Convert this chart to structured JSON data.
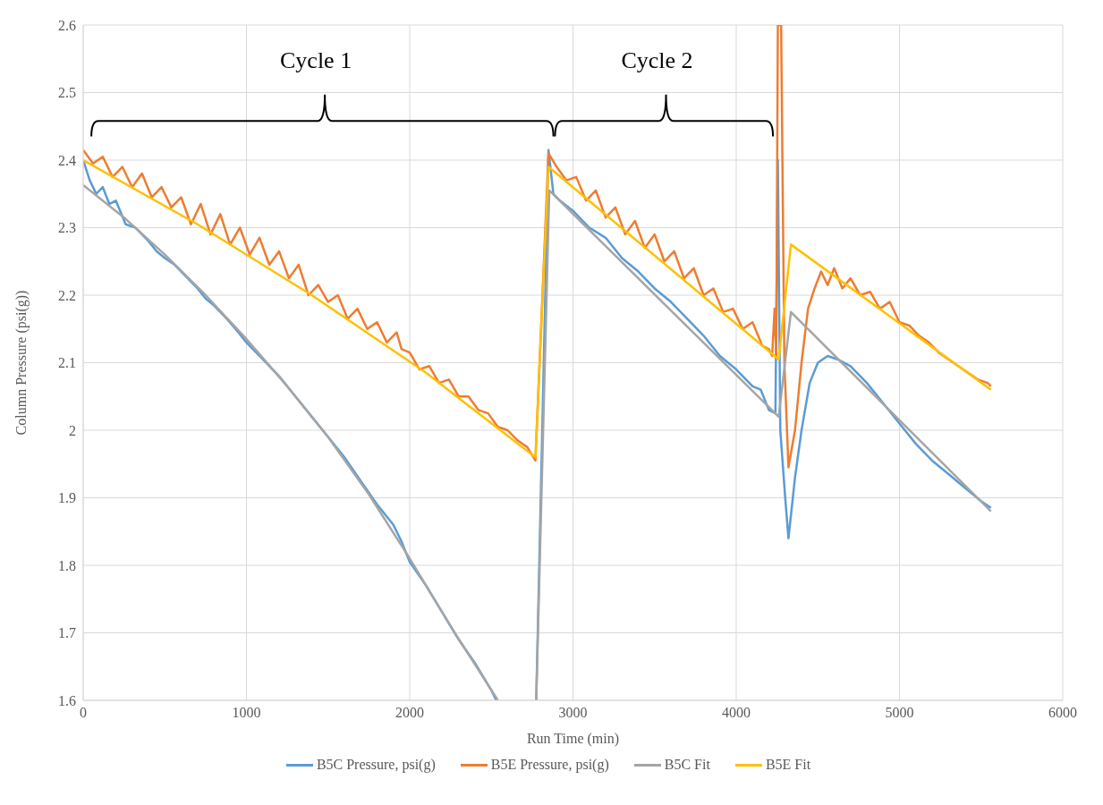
{
  "chart_data": {
    "type": "line",
    "xlabel": "Run Time (min)",
    "ylabel": "Column Pressure (psi(g))",
    "xlim": [
      0,
      6000
    ],
    "xticks": [
      0,
      1000,
      2000,
      3000,
      4000,
      5000,
      6000
    ],
    "ylim": [
      1.6,
      2.6
    ],
    "yticks": [
      1.6,
      1.7,
      1.8,
      1.9,
      2,
      2.1,
      2.2,
      2.3,
      2.4,
      2.5,
      2.6
    ],
    "grid": true,
    "legend": "bottom",
    "marker": "none",
    "line_style": "solid",
    "annotations": [
      "Cycle 1",
      "Cycle 2"
    ],
    "series": [
      {
        "name": "B5C Pressure, psi(g)",
        "color": "#5b9bd5",
        "x": [
          0,
          40,
          80,
          120,
          160,
          200,
          260,
          320,
          400,
          450,
          500,
          560,
          620,
          700,
          750,
          800,
          880,
          950,
          1000,
          1100,
          1200,
          1300,
          1400,
          1500,
          1600,
          1700,
          1800,
          1900,
          1950,
          2000,
          2100,
          2200,
          2300,
          2400,
          2500,
          2530,
          2650,
          2775,
          2850,
          2880,
          2920,
          3000,
          3100,
          3200,
          3300,
          3400,
          3500,
          3600,
          3700,
          3800,
          3900,
          4000,
          4100,
          4150,
          4200,
          4240,
          4255,
          4270,
          4300,
          4320,
          4360,
          4400,
          4450,
          4500,
          4560,
          4620,
          4700,
          4800,
          4900,
          5000,
          5100,
          5200,
          5300,
          5400,
          5500,
          5560
        ],
        "values": [
          2.4,
          2.37,
          2.35,
          2.36,
          2.335,
          2.34,
          2.305,
          2.3,
          2.28,
          2.265,
          2.255,
          2.245,
          2.23,
          2.21,
          2.195,
          2.185,
          2.165,
          2.145,
          2.13,
          2.105,
          2.08,
          2.05,
          2.02,
          1.99,
          1.96,
          1.925,
          1.89,
          1.86,
          1.835,
          1.805,
          1.77,
          1.73,
          1.69,
          1.655,
          1.615,
          1.6,
          null,
          1.6,
          2.415,
          2.35,
          2.34,
          2.325,
          2.3,
          2.285,
          2.255,
          2.235,
          2.21,
          2.19,
          2.165,
          2.14,
          2.11,
          2.09,
          2.065,
          2.06,
          2.03,
          2.025,
          2.4,
          2.0,
          1.9,
          1.84,
          1.93,
          2.0,
          2.07,
          2.1,
          2.11,
          2.105,
          2.095,
          2.07,
          2.04,
          2.01,
          1.98,
          1.955,
          1.935,
          1.915,
          1.895,
          1.885
        ]
      },
      {
        "name": "B5E Pressure, psi(g)",
        "color": "#ed7d31",
        "x": [
          0,
          60,
          120,
          180,
          240,
          300,
          360,
          420,
          480,
          540,
          600,
          660,
          720,
          780,
          840,
          900,
          960,
          1020,
          1080,
          1140,
          1200,
          1260,
          1320,
          1380,
          1440,
          1500,
          1560,
          1620,
          1680,
          1740,
          1800,
          1860,
          1920,
          1950,
          2000,
          2060,
          2120,
          2180,
          2240,
          2300,
          2360,
          2420,
          2480,
          2540,
          2600,
          2660,
          2720,
          2770,
          2850,
          2900,
          2960,
          3020,
          3080,
          3140,
          3200,
          3260,
          3320,
          3380,
          3440,
          3500,
          3560,
          3620,
          3680,
          3740,
          3800,
          3860,
          3920,
          3980,
          4040,
          4100,
          4160,
          4200,
          4220,
          4235,
          4245,
          4255,
          4275,
          4295,
          4320,
          4360,
          4400,
          4440,
          4480,
          4520,
          4560,
          4600,
          4650,
          4700,
          4760,
          4820,
          4880,
          4940,
          5000,
          5060,
          5120,
          5180,
          5240,
          5300,
          5360,
          5420,
          5480,
          5540,
          5560
        ],
        "values": [
          2.415,
          2.395,
          2.405,
          2.375,
          2.39,
          2.36,
          2.38,
          2.345,
          2.36,
          2.33,
          2.345,
          2.305,
          2.335,
          2.29,
          2.32,
          2.275,
          2.3,
          2.26,
          2.285,
          2.245,
          2.265,
          2.225,
          2.245,
          2.2,
          2.215,
          2.19,
          2.2,
          2.165,
          2.18,
          2.15,
          2.16,
          2.13,
          2.145,
          2.12,
          2.115,
          2.09,
          2.095,
          2.07,
          2.075,
          2.05,
          2.05,
          2.03,
          2.025,
          2.005,
          2,
          1.985,
          1.975,
          1.955,
          2.41,
          2.39,
          2.37,
          2.375,
          2.34,
          2.355,
          2.315,
          2.33,
          2.29,
          2.31,
          2.27,
          2.29,
          2.25,
          2.265,
          2.225,
          2.24,
          2.2,
          2.21,
          2.175,
          2.18,
          2.15,
          2.16,
          2.125,
          2.12,
          2.11,
          2.18,
          2.11,
          2.6,
          2.6,
          2.1,
          1.945,
          2,
          2.1,
          2.18,
          2.21,
          2.235,
          2.215,
          2.24,
          2.21,
          2.225,
          2.2,
          2.205,
          2.18,
          2.19,
          2.16,
          2.155,
          2.14,
          2.13,
          2.115,
          2.105,
          2.095,
          2.085,
          2.075,
          2.07,
          2.065
        ]
      },
      {
        "name": "B5C Fit",
        "color": "#a5a5a5",
        "x": [
          0,
          250,
          500,
          750,
          1000,
          1250,
          1500,
          1750,
          2000,
          2250,
          2540,
          2650,
          2775,
          2855,
          4260,
          4335,
          5560
        ],
        "values": [
          2.363,
          2.315,
          2.26,
          2.2,
          2.135,
          2.065,
          1.99,
          1.905,
          1.81,
          1.71,
          1.6,
          null,
          1.6,
          2.355,
          2.02,
          2.175,
          1.88
        ]
      },
      {
        "name": "B5E Fit",
        "color": "#ffc000",
        "x": [
          0,
          700,
          1400,
          2100,
          2770,
          2850,
          4260,
          4335,
          5560
        ],
        "values": [
          2.4,
          2.305,
          2.2,
          2.085,
          1.96,
          2.39,
          2.105,
          2.275,
          2.06
        ]
      }
    ]
  }
}
